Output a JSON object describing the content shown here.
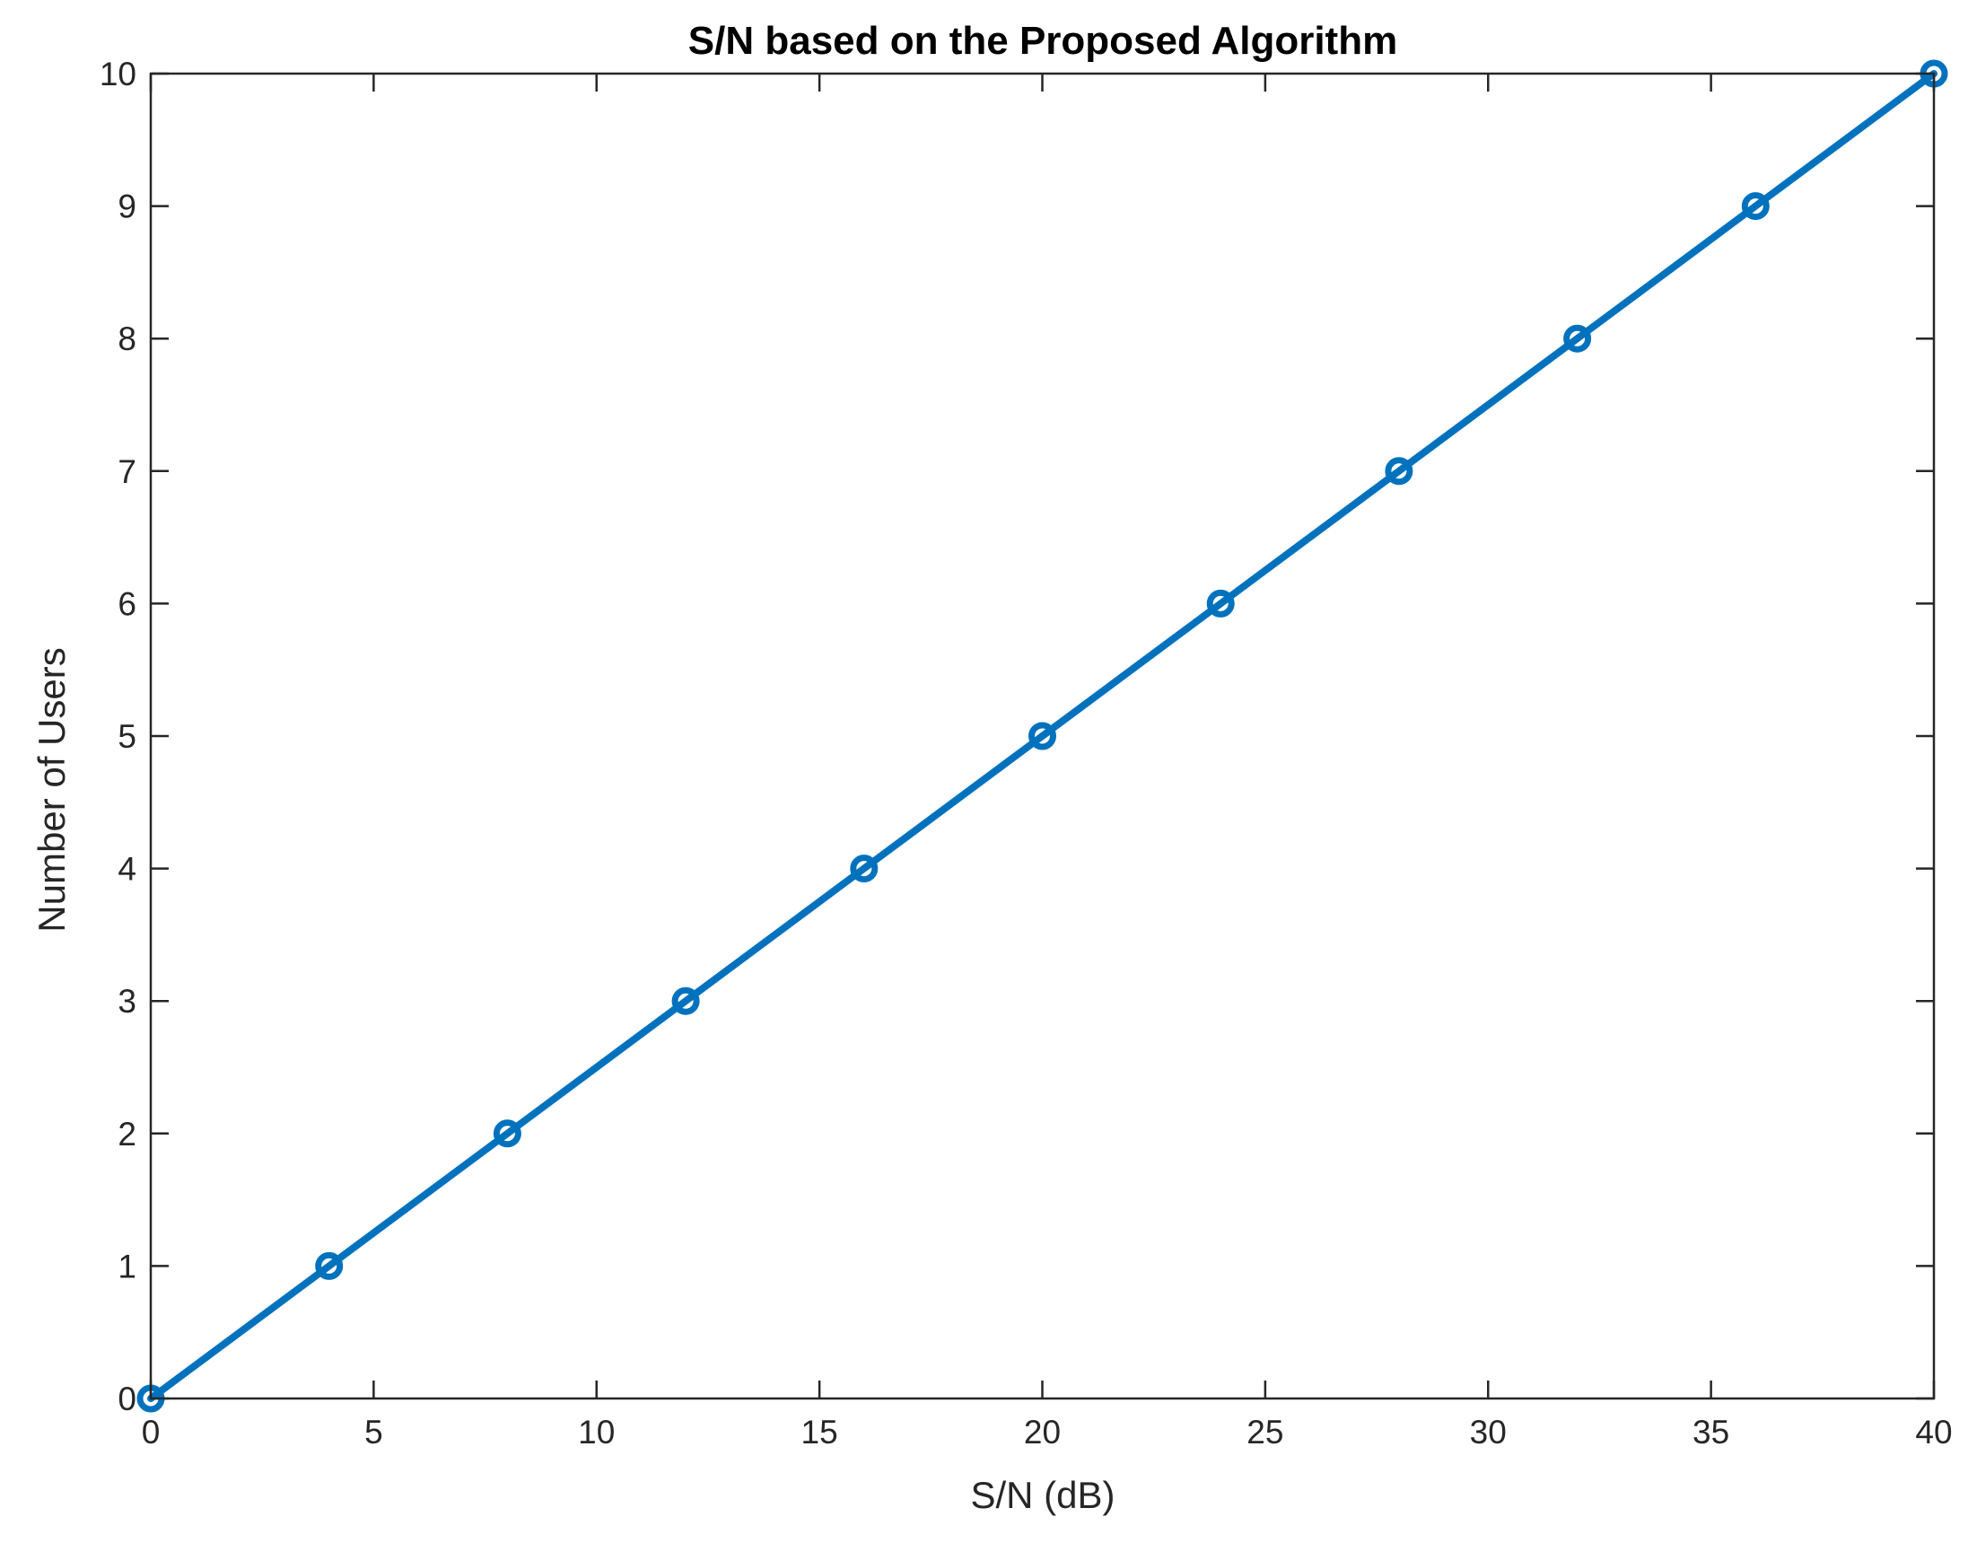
{
  "chart_data": {
    "type": "line",
    "title": "S/N based on the Proposed Algorithm",
    "xlabel": "S/N (dB)",
    "ylabel": "Number of Users",
    "xlim": [
      0,
      40
    ],
    "ylim": [
      0,
      10
    ],
    "xticks": [
      0,
      5,
      10,
      15,
      20,
      25,
      30,
      35,
      40
    ],
    "yticks": [
      0,
      1,
      2,
      3,
      4,
      5,
      6,
      7,
      8,
      9,
      10
    ],
    "grid": false,
    "marker": "circle",
    "line_color": "#0072BD",
    "series": [
      {
        "x": [
          0,
          4,
          8,
          12,
          16,
          20,
          24,
          28,
          32,
          36,
          40
        ],
        "y": [
          0,
          1,
          2,
          3,
          4,
          5,
          6,
          7,
          8,
          9,
          10
        ]
      }
    ]
  }
}
